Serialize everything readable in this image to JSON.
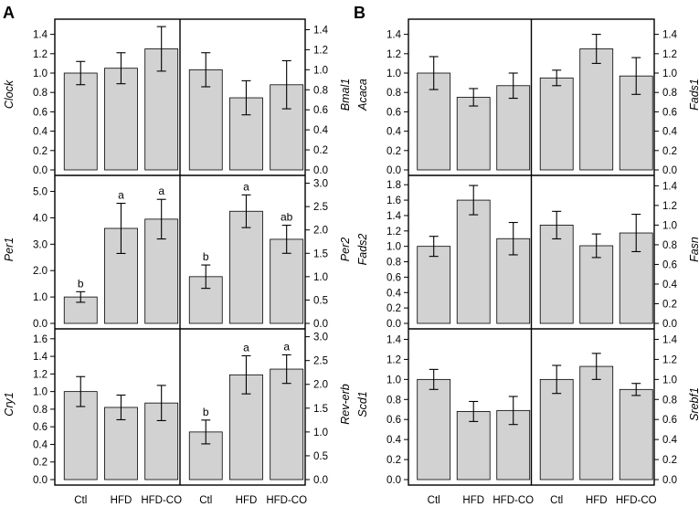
{
  "panel_labels": [
    "A",
    "B"
  ],
  "categories": [
    "Ctl",
    "HFD",
    "HFD-CO"
  ],
  "colors": {
    "bar": "#d2d2d2",
    "stroke": "#000000"
  },
  "chart_data": [
    {
      "type": "bar",
      "panel": "A",
      "gene": "Clock",
      "axis_side": "left",
      "categories": [
        "Ctl",
        "HFD",
        "HFD-CO"
      ],
      "values": [
        1.0,
        1.05,
        1.25
      ],
      "errors": [
        0.12,
        0.16,
        0.23
      ],
      "ylim": [
        0,
        1.5
      ],
      "ticks": [
        "0.0",
        "0.2",
        "0.4",
        "0.6",
        "0.8",
        "1.0",
        "1.2",
        "1.4"
      ],
      "letters": [
        "",
        "",
        ""
      ]
    },
    {
      "type": "bar",
      "panel": "A",
      "gene": "Bmal1",
      "axis_side": "right",
      "categories": [
        "Ctl",
        "HFD",
        "HFD-CO"
      ],
      "values": [
        1.0,
        0.72,
        0.85
      ],
      "errors": [
        0.17,
        0.17,
        0.24
      ],
      "ylim": [
        0,
        1.45
      ],
      "ticks": [
        "0.0",
        "0.2",
        "0.4",
        "0.6",
        "0.8",
        "1.0",
        "1.2",
        "1.4"
      ],
      "letters": [
        "",
        "",
        ""
      ]
    },
    {
      "type": "bar",
      "panel": "A",
      "gene": "Per1",
      "axis_side": "left",
      "categories": [
        "Ctl",
        "HFD",
        "HFD-CO"
      ],
      "values": [
        1.0,
        3.6,
        3.95
      ],
      "errors": [
        0.2,
        0.95,
        0.75
      ],
      "ylim": [
        0,
        5.4
      ],
      "ticks": [
        "0.0",
        "1.0",
        "2.0",
        "3.0",
        "4.0",
        "5.0"
      ],
      "letters": [
        "b",
        "a",
        "a"
      ]
    },
    {
      "type": "bar",
      "panel": "A",
      "gene": "Per2",
      "axis_side": "right",
      "categories": [
        "Ctl",
        "HFD",
        "HFD-CO"
      ],
      "values": [
        1.0,
        2.4,
        1.8
      ],
      "errors": [
        0.25,
        0.35,
        0.3
      ],
      "ylim": [
        0,
        3.05
      ],
      "ticks": [
        "0.0",
        "0.5",
        "1.0",
        "1.5",
        "2.0",
        "2.5",
        "3.0"
      ],
      "letters": [
        "b",
        "a",
        "ab"
      ]
    },
    {
      "type": "bar",
      "panel": "A",
      "gene": "Cry1",
      "axis_side": "left",
      "categories": [
        "Ctl",
        "HFD",
        "HFD-CO"
      ],
      "values": [
        1.0,
        0.82,
        0.87
      ],
      "errors": [
        0.17,
        0.14,
        0.2
      ],
      "ylim": [
        0,
        1.65
      ],
      "ticks": [
        "0.0",
        "0.2",
        "0.4",
        "0.6",
        "0.8",
        "1.0",
        "1.2",
        "1.4",
        "1.6"
      ],
      "letters": [
        "",
        "",
        ""
      ]
    },
    {
      "type": "bar",
      "panel": "A",
      "gene": "Rev-erb",
      "axis_side": "right",
      "categories": [
        "Ctl",
        "HFD",
        "HFD-CO"
      ],
      "values": [
        1.0,
        2.2,
        2.32
      ],
      "errors": [
        0.25,
        0.4,
        0.3
      ],
      "ylim": [
        0,
        3.05
      ],
      "ticks": [
        "0.0",
        "0.5",
        "1.0",
        "1.5",
        "2.0",
        "2.5",
        "3.0"
      ],
      "letters": [
        "b",
        "a",
        "a"
      ]
    },
    {
      "type": "bar",
      "panel": "B",
      "gene": "Acaca",
      "axis_side": "left",
      "categories": [
        "Ctl",
        "HFD",
        "HFD-CO"
      ],
      "values": [
        1.0,
        0.75,
        0.87
      ],
      "errors": [
        0.17,
        0.09,
        0.13
      ],
      "ylim": [
        0,
        1.5
      ],
      "ticks": [
        "0.0",
        "0.2",
        "0.4",
        "0.6",
        "0.8",
        "1.0",
        "1.2",
        "1.4"
      ],
      "letters": [
        "",
        "",
        ""
      ]
    },
    {
      "type": "bar",
      "panel": "B",
      "gene": "Fads1",
      "axis_side": "right",
      "categories": [
        "Ctl",
        "HFD",
        "HFD-CO"
      ],
      "values": [
        0.95,
        1.25,
        0.97
      ],
      "errors": [
        0.08,
        0.15,
        0.19
      ],
      "ylim": [
        0,
        1.5
      ],
      "ticks": [
        "0.0",
        "0.2",
        "0.4",
        "0.6",
        "0.8",
        "1.0",
        "1.2",
        "1.4"
      ],
      "letters": [
        "",
        "",
        ""
      ]
    },
    {
      "type": "bar",
      "panel": "B",
      "gene": "Fads2",
      "axis_side": "left",
      "categories": [
        "Ctl",
        "HFD",
        "HFD-CO"
      ],
      "values": [
        1.0,
        1.6,
        1.1
      ],
      "errors": [
        0.13,
        0.19,
        0.21
      ],
      "ylim": [
        0,
        1.85
      ],
      "ticks": [
        "0.0",
        "0.2",
        "0.4",
        "0.6",
        "0.8",
        "1.0",
        "1.2",
        "1.4",
        "1.6",
        "1.8"
      ],
      "letters": [
        "",
        "",
        ""
      ]
    },
    {
      "type": "bar",
      "panel": "B",
      "gene": "Fasn",
      "axis_side": "right",
      "categories": [
        "Ctl",
        "HFD",
        "HFD-CO"
      ],
      "values": [
        1.0,
        0.79,
        0.92
      ],
      "errors": [
        0.14,
        0.12,
        0.19
      ],
      "ylim": [
        0,
        1.45
      ],
      "ticks": [
        "0.0",
        "0.2",
        "0.4",
        "0.6",
        "0.8",
        "1.0",
        "1.2",
        "1.4"
      ],
      "letters": [
        "",
        "",
        ""
      ]
    },
    {
      "type": "bar",
      "panel": "B",
      "gene": "Scd1",
      "axis_side": "left",
      "categories": [
        "Ctl",
        "HFD",
        "HFD-CO"
      ],
      "values": [
        1.0,
        0.68,
        0.69
      ],
      "errors": [
        0.1,
        0.1,
        0.14
      ],
      "ylim": [
        0,
        1.45
      ],
      "ticks": [
        "0.0",
        "0.2",
        "0.4",
        "0.6",
        "0.8",
        "1.0",
        "1.2",
        "1.4"
      ],
      "letters": [
        "",
        "",
        ""
      ]
    },
    {
      "type": "bar",
      "panel": "B",
      "gene": "Srebf1",
      "axis_side": "right",
      "categories": [
        "Ctl",
        "HFD",
        "HFD-CO"
      ],
      "values": [
        1.0,
        1.13,
        0.9
      ],
      "errors": [
        0.14,
        0.13,
        0.06
      ],
      "ylim": [
        0,
        1.45
      ],
      "ticks": [
        "0.0",
        "0.2",
        "0.4",
        "0.6",
        "0.8",
        "1.0",
        "1.2",
        "1.4"
      ],
      "letters": [
        "",
        "",
        ""
      ]
    }
  ]
}
